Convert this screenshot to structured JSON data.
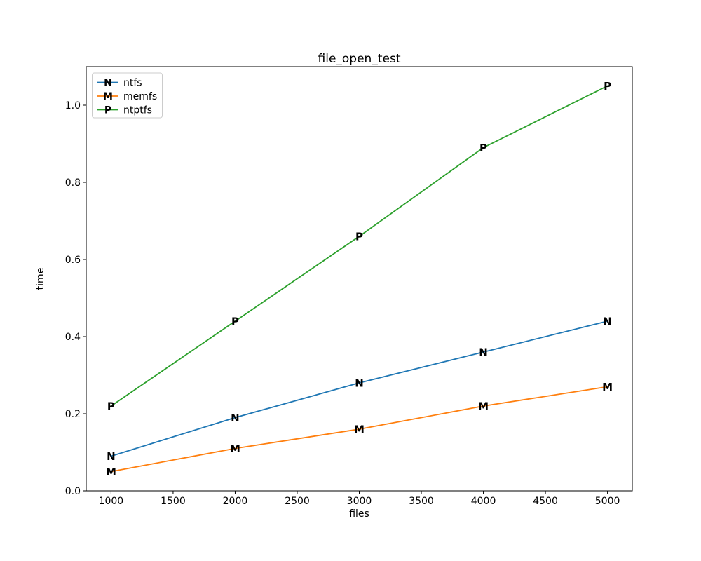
{
  "figure": {
    "background_color": "#ffffff",
    "spine_color": "#000000",
    "tick_color": "#000000",
    "legend_border_color": "#cccccc"
  },
  "chart_data": {
    "type": "line",
    "title": "file_open_test",
    "xlabel": "files",
    "ylabel": "time",
    "x": [
      1000,
      2000,
      3000,
      4000,
      5000
    ],
    "series": [
      {
        "name": "ntfs",
        "marker": "N",
        "color": "#1f77b4",
        "values": [
          0.09,
          0.19,
          0.28,
          0.36,
          0.44
        ]
      },
      {
        "name": "memfs",
        "marker": "M",
        "color": "#ff7f0e",
        "values": [
          0.05,
          0.11,
          0.16,
          0.22,
          0.27
        ]
      },
      {
        "name": "ntptfs",
        "marker": "P",
        "color": "#2ca02c",
        "values": [
          0.22,
          0.44,
          0.66,
          0.89,
          1.05
        ]
      }
    ],
    "xlim": [
      800,
      5200
    ],
    "ylim": [
      0,
      1.1
    ],
    "xticks": [
      1000,
      1500,
      2000,
      2500,
      3000,
      3500,
      4000,
      4500,
      5000
    ],
    "xtick_labels": [
      "1000",
      "1500",
      "2000",
      "2500",
      "3000",
      "3500",
      "4000",
      "4500",
      "5000"
    ],
    "yticks": [
      0.0,
      0.2,
      0.4,
      0.6,
      0.8,
      1.0
    ],
    "ytick_labels": [
      "0.0",
      "0.2",
      "0.4",
      "0.6",
      "0.8",
      "1.0"
    ],
    "grid": false,
    "legend_position": "upper-left",
    "legend": [
      "ntfs",
      "memfs",
      "ntptfs"
    ]
  }
}
